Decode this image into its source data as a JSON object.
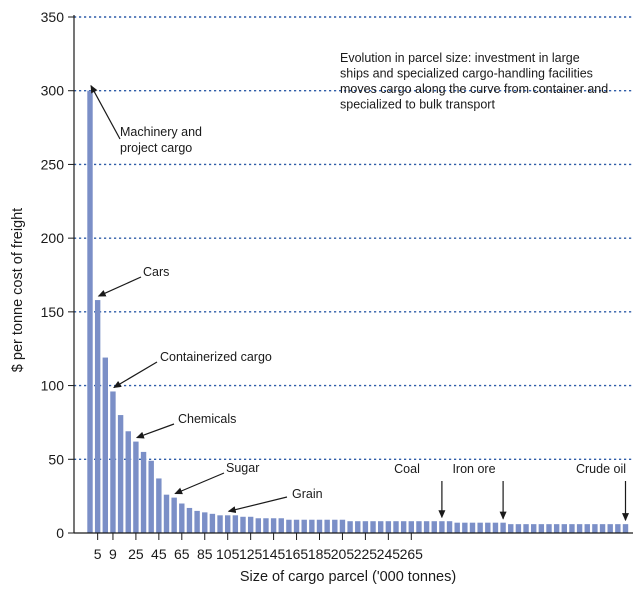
{
  "chart_data": {
    "type": "bar",
    "xlabel": "Size of cargo parcel ('000 tonnes)",
    "ylabel": "$ per tonne cost of freight",
    "ylim": [
      0,
      350
    ],
    "yticks": [
      0,
      50,
      100,
      150,
      200,
      250,
      300,
      350
    ],
    "grid": "horizontal dotted",
    "bar_color": "#7b8fc7",
    "grid_color": "#2f5ca8",
    "xtick_labels": [
      {
        "label": "5",
        "bar_index": 1
      },
      {
        "label": "9",
        "bar_index": 3
      },
      {
        "label": "25",
        "bar_index": 6
      },
      {
        "label": "45",
        "bar_index": 9
      },
      {
        "label": "65",
        "bar_index": 12
      },
      {
        "label": "85",
        "bar_index": 15
      },
      {
        "label": "105",
        "bar_index": 18
      },
      {
        "label": "125",
        "bar_index": 21
      },
      {
        "label": "145",
        "bar_index": 24
      },
      {
        "label": "165",
        "bar_index": 27
      },
      {
        "label": "185",
        "bar_index": 30
      },
      {
        "label": "205",
        "bar_index": 33
      },
      {
        "label": "225",
        "bar_index": 36
      },
      {
        "label": "245",
        "bar_index": 39
      },
      {
        "label": "265",
        "bar_index": 42
      }
    ],
    "values": [
      300,
      158,
      119,
      96,
      80,
      69,
      62,
      55,
      49,
      37,
      26,
      24,
      20,
      17,
      15,
      14,
      13,
      12,
      12,
      12,
      11,
      11,
      10,
      10,
      10,
      10,
      9,
      9,
      9,
      9,
      9,
      9,
      9,
      9,
      8,
      8,
      8,
      8,
      8,
      8,
      8,
      8,
      8,
      8,
      8,
      8,
      8,
      8,
      7,
      7,
      7,
      7,
      7,
      7,
      7,
      6,
      6,
      6,
      6,
      6,
      6,
      6,
      6,
      6,
      6,
      6,
      6,
      6,
      6,
      6,
      6
    ],
    "note": "Evolution in parcel size: investment in large ships and specialized cargo-handling facilities moves cargo along the curve from container and specialized to bulk transport",
    "annotations": [
      {
        "text": "Machinery and project cargo",
        "bar_index": 0
      },
      {
        "text": "Cars",
        "bar_index": 1
      },
      {
        "text": "Containerized cargo",
        "bar_index": 3
      },
      {
        "text": "Chemicals",
        "bar_index": 6
      },
      {
        "text": "Sugar",
        "bar_index": 11
      },
      {
        "text": "Grain",
        "bar_index": 18
      },
      {
        "text": "Coal",
        "bar_index": 46
      },
      {
        "text": "Iron ore",
        "bar_index": 54
      },
      {
        "text": "Crude oil",
        "bar_index": 70
      }
    ]
  }
}
